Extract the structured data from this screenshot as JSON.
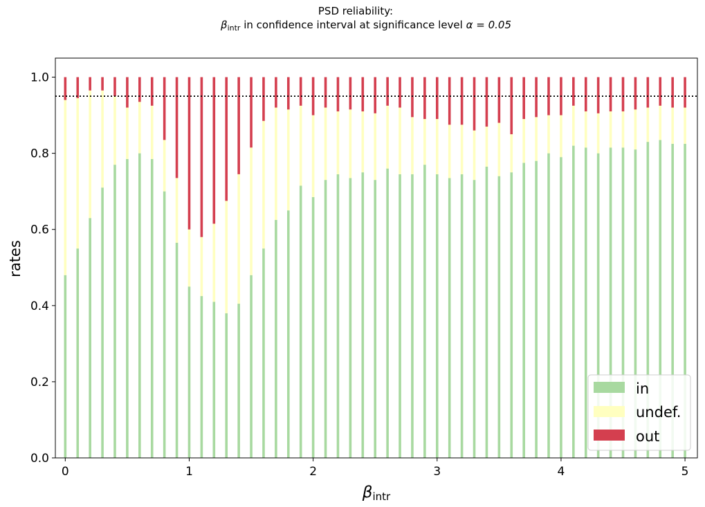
{
  "chart_data": {
    "type": "bar",
    "stacked": true,
    "title_line1": "PSD reliability:",
    "title_line2_symbol": "β",
    "title_line2_sub": "intr",
    "title_line2_rest": " in confidence interval at significance level ",
    "title_line2_alpha": "α = 0.05",
    "xlabel_symbol": "β",
    "xlabel_sub": "intr",
    "ylabel": "rates",
    "xlim": [
      -0.08,
      5.1
    ],
    "ylim": [
      0,
      1.05
    ],
    "x_ticks": [
      0,
      1,
      2,
      3,
      4,
      5
    ],
    "y_ticks": [
      "0.0",
      "0.2",
      "0.4",
      "0.6",
      "0.8",
      "1.0"
    ],
    "reference_line": 0.95,
    "reference_line_style": "dotted",
    "grid": false,
    "legend_position": "lower right",
    "x": [
      0.0,
      0.1,
      0.2,
      0.3,
      0.4,
      0.5,
      0.6,
      0.7,
      0.8,
      0.9,
      1.0,
      1.1,
      1.2,
      1.3,
      1.4,
      1.5,
      1.6,
      1.7,
      1.8,
      1.9,
      2.0,
      2.1,
      2.2,
      2.3,
      2.4,
      2.5,
      2.6,
      2.7,
      2.8,
      2.9,
      3.0,
      3.1,
      3.2,
      3.3,
      3.4,
      3.5,
      3.6,
      3.7,
      3.8,
      3.9,
      4.0,
      4.1,
      4.2,
      4.3,
      4.4,
      4.5,
      4.6,
      4.7,
      4.8,
      4.9,
      5.0
    ],
    "series": [
      {
        "name": "in",
        "color": "#a8d9a0",
        "values": [
          0.48,
          0.55,
          0.63,
          0.71,
          0.77,
          0.785,
          0.8,
          0.785,
          0.7,
          0.565,
          0.45,
          0.425,
          0.41,
          0.38,
          0.405,
          0.48,
          0.55,
          0.625,
          0.65,
          0.715,
          0.685,
          0.73,
          0.745,
          0.735,
          0.75,
          0.73,
          0.76,
          0.745,
          0.745,
          0.77,
          0.745,
          0.735,
          0.745,
          0.73,
          0.765,
          0.74,
          0.75,
          0.775,
          0.78,
          0.8,
          0.79,
          0.82,
          0.815,
          0.8,
          0.815,
          0.815,
          0.81,
          0.83,
          0.835,
          0.825,
          0.825
        ]
      },
      {
        "name": "undef.",
        "color": "#ffffc0",
        "values": [
          0.46,
          0.395,
          0.335,
          0.255,
          0.18,
          0.135,
          0.135,
          0.14,
          0.135,
          0.17,
          0.15,
          0.155,
          0.205,
          0.295,
          0.34,
          0.335,
          0.335,
          0.295,
          0.265,
          0.21,
          0.215,
          0.19,
          0.165,
          0.18,
          0.16,
          0.175,
          0.165,
          0.175,
          0.15,
          0.12,
          0.145,
          0.14,
          0.13,
          0.13,
          0.105,
          0.14,
          0.1,
          0.115,
          0.115,
          0.1,
          0.11,
          0.105,
          0.095,
          0.105,
          0.095,
          0.095,
          0.105,
          0.09,
          0.09,
          0.095,
          0.095
        ]
      },
      {
        "name": "out",
        "color": "#d43f4f",
        "values": [
          0.06,
          0.055,
          0.035,
          0.035,
          0.05,
          0.08,
          0.065,
          0.075,
          0.165,
          0.265,
          0.4,
          0.42,
          0.385,
          0.325,
          0.255,
          0.185,
          0.115,
          0.08,
          0.085,
          0.075,
          0.1,
          0.08,
          0.09,
          0.085,
          0.09,
          0.095,
          0.075,
          0.08,
          0.105,
          0.11,
          0.11,
          0.125,
          0.125,
          0.14,
          0.13,
          0.12,
          0.15,
          0.11,
          0.105,
          0.1,
          0.1,
          0.075,
          0.09,
          0.095,
          0.09,
          0.09,
          0.085,
          0.08,
          0.075,
          0.08,
          0.08
        ]
      }
    ]
  }
}
